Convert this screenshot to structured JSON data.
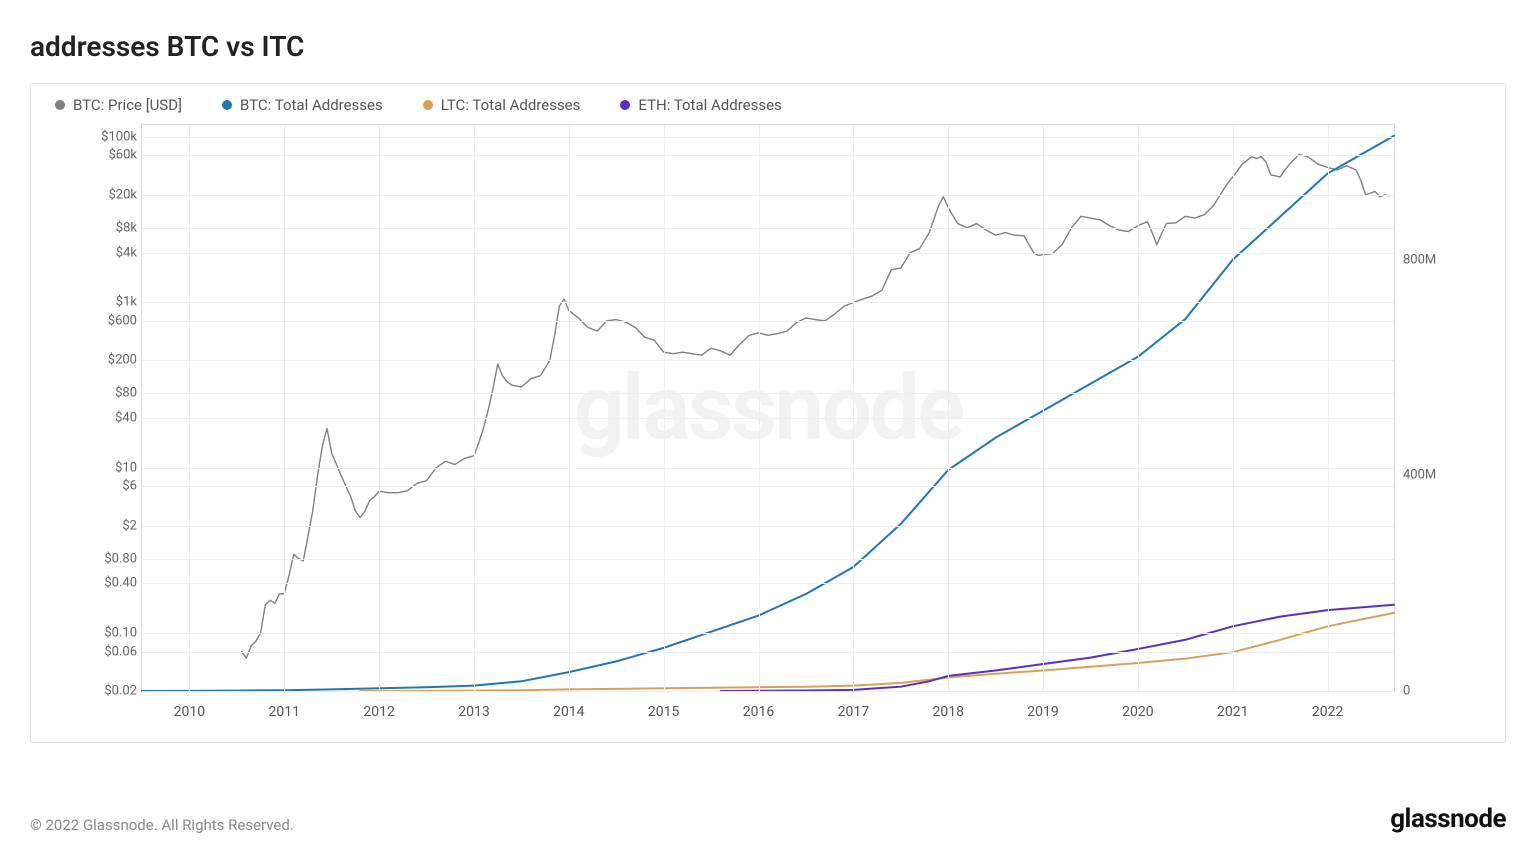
{
  "title": "addresses BTC vs ITC",
  "watermark": "glassnode",
  "copyright": "© 2022 Glassnode. All Rights Reserved.",
  "brand": "glassnode",
  "legend": [
    {
      "label": "BTC: Price [USD]",
      "color": "#808080"
    },
    {
      "label": "BTC: Total Addresses",
      "color": "#1f77b4"
    },
    {
      "label": "LTC: Total Addresses",
      "color": "#d6a15a"
    },
    {
      "label": "ETH: Total Addresses",
      "color": "#5b2fbf"
    }
  ],
  "chart": {
    "type": "line",
    "background_color": "#ffffff",
    "grid_color": "#eeeeee",
    "border_color": "#d8d8d8",
    "x_axis": {
      "min": 2009.5,
      "max": 2022.7,
      "ticks": [
        2010,
        2011,
        2012,
        2013,
        2014,
        2015,
        2016,
        2017,
        2018,
        2019,
        2020,
        2021,
        2022
      ]
    },
    "y_left": {
      "scale": "log",
      "min": 0.02,
      "max": 140000,
      "ticks": [
        {
          "v": 0.02,
          "label": "$0.02"
        },
        {
          "v": 0.06,
          "label": "$0.06"
        },
        {
          "v": 0.1,
          "label": "$0.10"
        },
        {
          "v": 0.4,
          "label": "$0.40"
        },
        {
          "v": 0.8,
          "label": "$0.80"
        },
        {
          "v": 2,
          "label": "$2"
        },
        {
          "v": 6,
          "label": "$6"
        },
        {
          "v": 10,
          "label": "$10"
        },
        {
          "v": 40,
          "label": "$40"
        },
        {
          "v": 80,
          "label": "$80"
        },
        {
          "v": 200,
          "label": "$200"
        },
        {
          "v": 600,
          "label": "$600"
        },
        {
          "v": 1000,
          "label": "$1k"
        },
        {
          "v": 4000,
          "label": "$4k"
        },
        {
          "v": 8000,
          "label": "$8k"
        },
        {
          "v": 20000,
          "label": "$20k"
        },
        {
          "v": 60000,
          "label": "$60k"
        },
        {
          "v": 100000,
          "label": "$100k"
        }
      ]
    },
    "y_right": {
      "scale": "linear",
      "min": 0,
      "max": 1050,
      "ticks": [
        {
          "v": 0,
          "label": "0"
        },
        {
          "v": 400,
          "label": "400M"
        },
        {
          "v": 800,
          "label": "800M"
        }
      ]
    },
    "series": {
      "btc_price": {
        "axis": "left",
        "color": "#808080",
        "width": 1.4,
        "data": [
          [
            2010.55,
            0.06
          ],
          [
            2010.6,
            0.05
          ],
          [
            2010.65,
            0.07
          ],
          [
            2010.7,
            0.08
          ],
          [
            2010.75,
            0.1
          ],
          [
            2010.8,
            0.22
          ],
          [
            2010.85,
            0.25
          ],
          [
            2010.9,
            0.23
          ],
          [
            2010.95,
            0.3
          ],
          [
            2011.0,
            0.3
          ],
          [
            2011.05,
            0.5
          ],
          [
            2011.1,
            0.9
          ],
          [
            2011.15,
            0.8
          ],
          [
            2011.2,
            0.75
          ],
          [
            2011.25,
            1.5
          ],
          [
            2011.3,
            3.0
          ],
          [
            2011.35,
            8.0
          ],
          [
            2011.4,
            18
          ],
          [
            2011.45,
            30
          ],
          [
            2011.5,
            15
          ],
          [
            2011.55,
            11
          ],
          [
            2011.6,
            8
          ],
          [
            2011.65,
            6
          ],
          [
            2011.7,
            4.5
          ],
          [
            2011.75,
            3.0
          ],
          [
            2011.8,
            2.5
          ],
          [
            2011.85,
            3.0
          ],
          [
            2011.9,
            4.0
          ],
          [
            2011.95,
            4.5
          ],
          [
            2012.0,
            5.2
          ],
          [
            2012.1,
            5.0
          ],
          [
            2012.2,
            5.0
          ],
          [
            2012.3,
            5.3
          ],
          [
            2012.4,
            6.5
          ],
          [
            2012.5,
            7.0
          ],
          [
            2012.6,
            10
          ],
          [
            2012.7,
            12
          ],
          [
            2012.8,
            11
          ],
          [
            2012.9,
            13
          ],
          [
            2013.0,
            14
          ],
          [
            2013.05,
            20
          ],
          [
            2013.1,
            30
          ],
          [
            2013.15,
            50
          ],
          [
            2013.2,
            90
          ],
          [
            2013.25,
            180
          ],
          [
            2013.3,
            130
          ],
          [
            2013.35,
            110
          ],
          [
            2013.4,
            100
          ],
          [
            2013.5,
            95
          ],
          [
            2013.6,
            120
          ],
          [
            2013.7,
            130
          ],
          [
            2013.8,
            200
          ],
          [
            2013.85,
            400
          ],
          [
            2013.9,
            900
          ],
          [
            2013.95,
            1100
          ],
          [
            2014.0,
            800
          ],
          [
            2014.1,
            650
          ],
          [
            2014.2,
            500
          ],
          [
            2014.3,
            450
          ],
          [
            2014.4,
            600
          ],
          [
            2014.5,
            620
          ],
          [
            2014.6,
            580
          ],
          [
            2014.7,
            500
          ],
          [
            2014.8,
            380
          ],
          [
            2014.9,
            350
          ],
          [
            2015.0,
            250
          ],
          [
            2015.1,
            240
          ],
          [
            2015.2,
            250
          ],
          [
            2015.3,
            240
          ],
          [
            2015.4,
            230
          ],
          [
            2015.5,
            280
          ],
          [
            2015.6,
            260
          ],
          [
            2015.7,
            230
          ],
          [
            2015.8,
            310
          ],
          [
            2015.9,
            400
          ],
          [
            2016.0,
            430
          ],
          [
            2016.1,
            400
          ],
          [
            2016.2,
            420
          ],
          [
            2016.3,
            450
          ],
          [
            2016.4,
            570
          ],
          [
            2016.5,
            650
          ],
          [
            2016.6,
            620
          ],
          [
            2016.7,
            600
          ],
          [
            2016.8,
            720
          ],
          [
            2016.9,
            900
          ],
          [
            2017.0,
            1000
          ],
          [
            2017.1,
            1100
          ],
          [
            2017.2,
            1200
          ],
          [
            2017.3,
            1400
          ],
          [
            2017.4,
            2500
          ],
          [
            2017.5,
            2600
          ],
          [
            2017.6,
            4000
          ],
          [
            2017.7,
            4500
          ],
          [
            2017.8,
            7000
          ],
          [
            2017.9,
            15000
          ],
          [
            2017.95,
            19000
          ],
          [
            2018.0,
            14000
          ],
          [
            2018.1,
            9000
          ],
          [
            2018.2,
            8000
          ],
          [
            2018.3,
            9000
          ],
          [
            2018.4,
            7500
          ],
          [
            2018.5,
            6500
          ],
          [
            2018.6,
            7000
          ],
          [
            2018.7,
            6500
          ],
          [
            2018.8,
            6400
          ],
          [
            2018.9,
            4000
          ],
          [
            2018.95,
            3700
          ],
          [
            2019.0,
            3800
          ],
          [
            2019.1,
            3900
          ],
          [
            2019.2,
            5000
          ],
          [
            2019.3,
            8000
          ],
          [
            2019.4,
            11000
          ],
          [
            2019.5,
            10500
          ],
          [
            2019.6,
            10000
          ],
          [
            2019.7,
            8500
          ],
          [
            2019.8,
            7500
          ],
          [
            2019.9,
            7200
          ],
          [
            2020.0,
            8500
          ],
          [
            2020.1,
            9500
          ],
          [
            2020.15,
            7000
          ],
          [
            2020.2,
            5000
          ],
          [
            2020.25,
            6800
          ],
          [
            2020.3,
            9000
          ],
          [
            2020.4,
            9200
          ],
          [
            2020.5,
            11000
          ],
          [
            2020.6,
            10500
          ],
          [
            2020.7,
            11500
          ],
          [
            2020.8,
            15000
          ],
          [
            2020.9,
            23000
          ],
          [
            2020.95,
            28000
          ],
          [
            2021.0,
            33000
          ],
          [
            2021.1,
            47000
          ],
          [
            2021.2,
            58000
          ],
          [
            2021.25,
            55000
          ],
          [
            2021.3,
            58000
          ],
          [
            2021.35,
            50000
          ],
          [
            2021.4,
            35000
          ],
          [
            2021.5,
            33000
          ],
          [
            2021.55,
            40000
          ],
          [
            2021.6,
            47000
          ],
          [
            2021.7,
            62000
          ],
          [
            2021.8,
            57000
          ],
          [
            2021.9,
            47000
          ],
          [
            2022.0,
            43000
          ],
          [
            2022.1,
            40000
          ],
          [
            2022.2,
            45000
          ],
          [
            2022.3,
            40000
          ],
          [
            2022.35,
            30000
          ],
          [
            2022.4,
            20000
          ],
          [
            2022.5,
            22000
          ],
          [
            2022.55,
            19000
          ],
          [
            2022.6,
            20000
          ],
          [
            2022.65,
            19500
          ]
        ]
      },
      "btc_addresses": {
        "axis": "right",
        "color": "#1f77b4",
        "width": 2.0,
        "data": [
          [
            2009.5,
            0
          ],
          [
            2010.0,
            0.3
          ],
          [
            2010.5,
            0.8
          ],
          [
            2011.0,
            1.5
          ],
          [
            2011.5,
            3
          ],
          [
            2012.0,
            5
          ],
          [
            2012.5,
            7
          ],
          [
            2013.0,
            10
          ],
          [
            2013.5,
            18
          ],
          [
            2014.0,
            35
          ],
          [
            2014.5,
            55
          ],
          [
            2015.0,
            80
          ],
          [
            2015.5,
            110
          ],
          [
            2016.0,
            140
          ],
          [
            2016.5,
            180
          ],
          [
            2017.0,
            230
          ],
          [
            2017.5,
            310
          ],
          [
            2018.0,
            410
          ],
          [
            2018.5,
            470
          ],
          [
            2019.0,
            520
          ],
          [
            2019.5,
            570
          ],
          [
            2020.0,
            620
          ],
          [
            2020.5,
            690
          ],
          [
            2021.0,
            800
          ],
          [
            2021.5,
            880
          ],
          [
            2022.0,
            960
          ],
          [
            2022.7,
            1030
          ]
        ]
      },
      "ltc_addresses": {
        "axis": "right",
        "color": "#d6a15a",
        "width": 2.0,
        "data": [
          [
            2011.8,
            0
          ],
          [
            2012.5,
            0.3
          ],
          [
            2013.0,
            0.7
          ],
          [
            2013.5,
            1.5
          ],
          [
            2014.0,
            3
          ],
          [
            2014.5,
            4
          ],
          [
            2015.0,
            5
          ],
          [
            2015.5,
            6
          ],
          [
            2016.0,
            7
          ],
          [
            2016.5,
            8
          ],
          [
            2017.0,
            10
          ],
          [
            2017.5,
            15
          ],
          [
            2018.0,
            25
          ],
          [
            2018.5,
            32
          ],
          [
            2019.0,
            38
          ],
          [
            2019.5,
            45
          ],
          [
            2020.0,
            52
          ],
          [
            2020.5,
            60
          ],
          [
            2021.0,
            72
          ],
          [
            2021.5,
            95
          ],
          [
            2022.0,
            120
          ],
          [
            2022.7,
            145
          ]
        ]
      },
      "eth_addresses": {
        "axis": "right",
        "color": "#5b2fbf",
        "width": 2.0,
        "data": [
          [
            2015.6,
            0
          ],
          [
            2016.0,
            0.5
          ],
          [
            2016.5,
            1
          ],
          [
            2017.0,
            2
          ],
          [
            2017.5,
            8
          ],
          [
            2017.8,
            18
          ],
          [
            2018.0,
            28
          ],
          [
            2018.5,
            38
          ],
          [
            2019.0,
            50
          ],
          [
            2019.5,
            62
          ],
          [
            2020.0,
            78
          ],
          [
            2020.5,
            95
          ],
          [
            2021.0,
            120
          ],
          [
            2021.5,
            138
          ],
          [
            2022.0,
            150
          ],
          [
            2022.7,
            160
          ]
        ]
      }
    }
  },
  "fonts": {
    "title_size": 28,
    "legend_size": 15,
    "tick_size": 13,
    "footer_size": 15,
    "brand_size": 26
  }
}
